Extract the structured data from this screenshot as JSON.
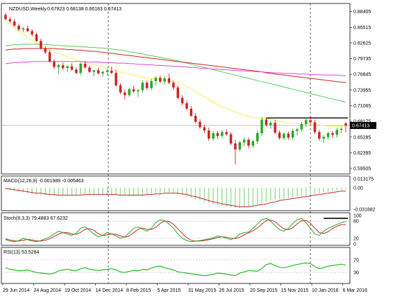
{
  "header": {
    "symbol": "NZDUSD,Weekly",
    "ohlc": "0.67823 0.68138 0.66183 0.67413"
  },
  "price_axis_labels": [
    "0.88405",
    "0.85515",
    "0.82625",
    "0.79735",
    "0.76845",
    "0.73955",
    "0.71065",
    "0.68175",
    "0.65285",
    "0.62395",
    "0.59505"
  ],
  "current_price_label": "0.67413",
  "macd": {
    "label": "MACD(12,26,9) -0.001989 -0.005463",
    "axis_labels": [
      "0.013175",
      "0.00",
      "-0.031882"
    ]
  },
  "stoch": {
    "label": "Stoch(8,3,3) 79.4883 67.6232",
    "axis_labels": [
      "100",
      "80",
      "20",
      "0"
    ]
  },
  "rsi": {
    "label": "RSI(13) 53.5284",
    "axis_labels": [
      "70",
      "30"
    ]
  },
  "time_labels": [
    "29 Jun 2014",
    "24 Aug 2014",
    "19 Oct 2014",
    "14 Dec 2014",
    "8 Feb 2015",
    "5 Apr 2015",
    "31 May 2015",
    "26 Jul 2015",
    "20 Sep 2015",
    "15 Nov 2015",
    "10 Jan 2016",
    "6 Mar 2016"
  ],
  "colors": {
    "bull": "#22aa22",
    "bear": "#cc2222",
    "sma_fast": "#ffee55",
    "sma_mid": "#55cc55",
    "sma_slow": "#cc2222",
    "sma_long": "#dd44dd",
    "macd_hist": "#99dd99",
    "signal": "#cc2222",
    "rsi": "#22bb22"
  },
  "chart_data": {
    "type": "candlestick",
    "timeframe": "Weekly",
    "ylim": [
      0.59,
      0.89
    ],
    "candles": [
      [
        0.878,
        0.882,
        0.868,
        0.87
      ],
      [
        0.87,
        0.874,
        0.862,
        0.866
      ],
      [
        0.866,
        0.87,
        0.856,
        0.858
      ],
      [
        0.858,
        0.862,
        0.848,
        0.851
      ],
      [
        0.851,
        0.856,
        0.846,
        0.853
      ],
      [
        0.853,
        0.858,
        0.846,
        0.848
      ],
      [
        0.848,
        0.852,
        0.838,
        0.842
      ],
      [
        0.842,
        0.845,
        0.828,
        0.83
      ],
      [
        0.83,
        0.834,
        0.814,
        0.816
      ],
      [
        0.816,
        0.82,
        0.806,
        0.809
      ],
      [
        0.809,
        0.813,
        0.79,
        0.792
      ],
      [
        0.792,
        0.796,
        0.778,
        0.782
      ],
      [
        0.782,
        0.788,
        0.77,
        0.785
      ],
      [
        0.785,
        0.79,
        0.776,
        0.78
      ],
      [
        0.78,
        0.786,
        0.772,
        0.783
      ],
      [
        0.783,
        0.789,
        0.775,
        0.777
      ],
      [
        0.777,
        0.781,
        0.769,
        0.771
      ],
      [
        0.771,
        0.791,
        0.767,
        0.788
      ],
      [
        0.788,
        0.793,
        0.779,
        0.781
      ],
      [
        0.781,
        0.785,
        0.771,
        0.773
      ],
      [
        0.773,
        0.777,
        0.765,
        0.776
      ],
      [
        0.776,
        0.781,
        0.768,
        0.77
      ],
      [
        0.77,
        0.775,
        0.764,
        0.773
      ],
      [
        0.773,
        0.779,
        0.767,
        0.775
      ],
      [
        0.775,
        0.783,
        0.769,
        0.771
      ],
      [
        0.771,
        0.776,
        0.745,
        0.748
      ],
      [
        0.748,
        0.752,
        0.732,
        0.735
      ],
      [
        0.735,
        0.74,
        0.722,
        0.73
      ],
      [
        0.73,
        0.744,
        0.727,
        0.741
      ],
      [
        0.741,
        0.747,
        0.734,
        0.737
      ],
      [
        0.737,
        0.741,
        0.727,
        0.739
      ],
      [
        0.739,
        0.757,
        0.735,
        0.753
      ],
      [
        0.753,
        0.757,
        0.74,
        0.743
      ],
      [
        0.743,
        0.76,
        0.739,
        0.756
      ],
      [
        0.756,
        0.765,
        0.748,
        0.762
      ],
      [
        0.762,
        0.766,
        0.752,
        0.755
      ],
      [
        0.755,
        0.765,
        0.749,
        0.761
      ],
      [
        0.761,
        0.77,
        0.75,
        0.753
      ],
      [
        0.753,
        0.757,
        0.74,
        0.744
      ],
      [
        0.744,
        0.748,
        0.722,
        0.725
      ],
      [
        0.725,
        0.73,
        0.712,
        0.715
      ],
      [
        0.715,
        0.72,
        0.702,
        0.705
      ],
      [
        0.705,
        0.71,
        0.69,
        0.692
      ],
      [
        0.692,
        0.697,
        0.678,
        0.681
      ],
      [
        0.681,
        0.686,
        0.668,
        0.671
      ],
      [
        0.671,
        0.676,
        0.66,
        0.665
      ],
      [
        0.665,
        0.67,
        0.646,
        0.65
      ],
      [
        0.65,
        0.664,
        0.646,
        0.66
      ],
      [
        0.66,
        0.664,
        0.65,
        0.655
      ],
      [
        0.655,
        0.666,
        0.651,
        0.662
      ],
      [
        0.662,
        0.667,
        0.655,
        0.658
      ],
      [
        0.658,
        0.662,
        0.638,
        0.641
      ],
      [
        0.641,
        0.648,
        0.602,
        0.63
      ],
      [
        0.63,
        0.646,
        0.626,
        0.643
      ],
      [
        0.643,
        0.652,
        0.636,
        0.648
      ],
      [
        0.648,
        0.652,
        0.632,
        0.637
      ],
      [
        0.637,
        0.648,
        0.633,
        0.645
      ],
      [
        0.645,
        0.665,
        0.64,
        0.66
      ],
      [
        0.66,
        0.69,
        0.655,
        0.685
      ],
      [
        0.685,
        0.689,
        0.672,
        0.675
      ],
      [
        0.675,
        0.683,
        0.668,
        0.679
      ],
      [
        0.679,
        0.684,
        0.658,
        0.661
      ],
      [
        0.661,
        0.665,
        0.648,
        0.651
      ],
      [
        0.651,
        0.662,
        0.647,
        0.659
      ],
      [
        0.659,
        0.663,
        0.648,
        0.652
      ],
      [
        0.652,
        0.668,
        0.648,
        0.664
      ],
      [
        0.664,
        0.67,
        0.656,
        0.667
      ],
      [
        0.667,
        0.681,
        0.662,
        0.677
      ],
      [
        0.677,
        0.688,
        0.672,
        0.684
      ],
      [
        0.684,
        0.692,
        0.676,
        0.68
      ],
      [
        0.68,
        0.685,
        0.658,
        0.662
      ],
      [
        0.662,
        0.666,
        0.646,
        0.65
      ],
      [
        0.65,
        0.656,
        0.642,
        0.653
      ],
      [
        0.653,
        0.663,
        0.648,
        0.66
      ],
      [
        0.66,
        0.664,
        0.651,
        0.657
      ],
      [
        0.657,
        0.67,
        0.652,
        0.666
      ],
      [
        0.666,
        0.671,
        0.66,
        0.668
      ],
      [
        0.678,
        0.681,
        0.662,
        0.674
      ]
    ],
    "series": [
      {
        "name": "fast",
        "values": [
          0.866,
          0.86,
          0.853,
          0.847,
          0.842,
          0.836,
          0.831,
          0.826,
          0.821,
          0.817,
          0.813,
          0.81,
          0.807,
          0.804,
          0.801,
          0.798,
          0.795,
          0.792,
          0.79,
          0.788,
          0.786,
          0.784,
          0.782,
          0.78,
          0.778,
          0.776,
          0.773,
          0.771,
          0.769,
          0.767,
          0.765,
          0.763,
          0.762,
          0.761,
          0.76,
          0.759,
          0.758,
          0.757,
          0.755,
          0.753,
          0.75,
          0.746,
          0.742,
          0.737,
          0.732,
          0.727,
          0.722,
          0.717,
          0.713,
          0.709,
          0.706,
          0.703,
          0.699,
          0.696,
          0.693,
          0.691,
          0.689,
          0.688,
          0.688,
          0.687,
          0.686,
          0.684,
          0.682,
          0.68,
          0.679,
          0.678,
          0.678,
          0.677,
          0.677,
          0.677,
          0.676,
          0.675,
          0.674,
          0.673,
          0.672,
          0.672,
          0.672,
          0.672
        ]
      },
      {
        "name": "mid",
        "values": [
          0.821,
          0.822,
          0.823,
          0.823,
          0.824,
          0.824,
          0.824,
          0.824,
          0.824,
          0.823,
          0.823,
          0.822,
          0.822,
          0.821,
          0.821,
          0.82,
          0.82,
          0.819,
          0.819,
          0.818,
          0.818,
          0.817,
          0.817,
          0.816,
          0.815,
          0.814,
          0.813,
          0.812,
          0.81,
          0.809,
          0.807,
          0.806,
          0.804,
          0.803,
          0.801,
          0.8,
          0.798,
          0.797,
          0.795,
          0.793,
          0.791,
          0.789,
          0.787,
          0.785,
          0.783,
          0.781,
          0.779,
          0.777,
          0.775,
          0.773,
          0.771,
          0.769,
          0.767,
          0.765,
          0.763,
          0.761,
          0.759,
          0.757,
          0.755,
          0.753,
          0.751,
          0.749,
          0.747,
          0.745,
          0.743,
          0.741,
          0.739,
          0.737,
          0.735,
          0.733,
          0.731,
          0.729,
          0.727,
          0.725,
          0.723,
          0.721,
          0.719,
          0.717
        ]
      },
      {
        "name": "slow",
        "values": [
          0.813,
          0.814,
          0.815,
          0.815,
          0.816,
          0.816,
          0.816,
          0.816,
          0.816,
          0.816,
          0.816,
          0.816,
          0.815,
          0.815,
          0.814,
          0.814,
          0.813,
          0.813,
          0.812,
          0.811,
          0.811,
          0.81,
          0.809,
          0.808,
          0.807,
          0.806,
          0.805,
          0.804,
          0.803,
          0.802,
          0.801,
          0.8,
          0.799,
          0.798,
          0.797,
          0.796,
          0.795,
          0.794,
          0.793,
          0.792,
          0.791,
          0.79,
          0.789,
          0.788,
          0.787,
          0.786,
          0.785,
          0.784,
          0.783,
          0.782,
          0.781,
          0.78,
          0.779,
          0.778,
          0.777,
          0.776,
          0.775,
          0.774,
          0.773,
          0.771,
          0.77,
          0.769,
          0.768,
          0.767,
          0.766,
          0.765,
          0.764,
          0.763,
          0.762,
          0.761,
          0.76,
          0.759,
          0.758,
          0.757,
          0.756,
          0.755,
          0.754,
          0.753
        ]
      },
      {
        "name": "long",
        "values": [
          0.788,
          0.789,
          0.79,
          0.79,
          0.791,
          0.791,
          0.792,
          0.792,
          0.792,
          0.792,
          0.792,
          0.792,
          0.792,
          0.792,
          0.792,
          0.792,
          0.792,
          0.792,
          0.791,
          0.791,
          0.791,
          0.791,
          0.79,
          0.79,
          0.79,
          0.789,
          0.789,
          0.789,
          0.788,
          0.788,
          0.787,
          0.787,
          0.786,
          0.786,
          0.785,
          0.785,
          0.784,
          0.784,
          0.783,
          0.783,
          0.782,
          0.782,
          0.781,
          0.781,
          0.78,
          0.779,
          0.779,
          0.778,
          0.778,
          0.777,
          0.777,
          0.776,
          0.776,
          0.775,
          0.775,
          0.774,
          0.774,
          0.773,
          0.773,
          0.772,
          0.772,
          0.771,
          0.771,
          0.77,
          0.77,
          0.77,
          0.769,
          0.769,
          0.769,
          0.768,
          0.768,
          0.768,
          0.767,
          0.767,
          0.767,
          0.767,
          0.766,
          0.766
        ]
      }
    ],
    "resistance_level": 0.688,
    "current_price": 0.67413,
    "macd": {
      "ylim": [
        -0.0319,
        0.0132
      ],
      "hist": [
        -0.003,
        -0.004,
        -0.005,
        -0.006,
        -0.007,
        -0.008,
        -0.009,
        -0.01,
        -0.01,
        -0.011,
        -0.011,
        -0.012,
        -0.012,
        -0.012,
        -0.011,
        -0.011,
        -0.011,
        -0.01,
        -0.01,
        -0.01,
        -0.01,
        -0.01,
        -0.01,
        -0.01,
        -0.011,
        -0.011,
        -0.012,
        -0.012,
        -0.012,
        -0.012,
        -0.011,
        -0.011,
        -0.01,
        -0.009,
        -0.008,
        -0.008,
        -0.007,
        -0.007,
        -0.008,
        -0.009,
        -0.011,
        -0.013,
        -0.015,
        -0.017,
        -0.019,
        -0.021,
        -0.023,
        -0.025,
        -0.026,
        -0.027,
        -0.028,
        -0.029,
        -0.03,
        -0.03,
        -0.029,
        -0.028,
        -0.027,
        -0.025,
        -0.023,
        -0.021,
        -0.019,
        -0.018,
        -0.017,
        -0.016,
        -0.015,
        -0.014,
        -0.013,
        -0.012,
        -0.011,
        -0.01,
        -0.009,
        -0.008,
        -0.007,
        -0.006,
        -0.005,
        -0.004,
        -0.003,
        -0.002
      ],
      "signal": [
        -0.001,
        -0.002,
        -0.003,
        -0.004,
        -0.005,
        -0.006,
        -0.007,
        -0.008,
        -0.008,
        -0.009,
        -0.01,
        -0.01,
        -0.011,
        -0.011,
        -0.011,
        -0.011,
        -0.011,
        -0.011,
        -0.01,
        -0.01,
        -0.01,
        -0.01,
        -0.01,
        -0.01,
        -0.01,
        -0.01,
        -0.011,
        -0.011,
        -0.011,
        -0.011,
        -0.011,
        -0.011,
        -0.01,
        -0.01,
        -0.009,
        -0.009,
        -0.008,
        -0.008,
        -0.008,
        -0.008,
        -0.009,
        -0.01,
        -0.012,
        -0.013,
        -0.015,
        -0.017,
        -0.019,
        -0.021,
        -0.022,
        -0.024,
        -0.025,
        -0.026,
        -0.027,
        -0.028,
        -0.028,
        -0.028,
        -0.027,
        -0.026,
        -0.025,
        -0.024,
        -0.022,
        -0.021,
        -0.019,
        -0.018,
        -0.017,
        -0.016,
        -0.015,
        -0.014,
        -0.013,
        -0.012,
        -0.011,
        -0.01,
        -0.009,
        -0.008,
        -0.007,
        -0.006,
        -0.005,
        -0.005
      ]
    },
    "stoch": {
      "ylim": [
        0,
        100
      ],
      "k": [
        15,
        10,
        8,
        12,
        20,
        15,
        10,
        8,
        12,
        18,
        25,
        35,
        45,
        40,
        35,
        30,
        38,
        55,
        60,
        48,
        35,
        25,
        30,
        40,
        35,
        28,
        20,
        25,
        40,
        55,
        60,
        52,
        45,
        55,
        75,
        85,
        82,
        70,
        55,
        35,
        20,
        12,
        8,
        10,
        12,
        15,
        18,
        22,
        28,
        25,
        20,
        15,
        22,
        35,
        40,
        42,
        55,
        70,
        85,
        90,
        80,
        65,
        50,
        45,
        55,
        72,
        85,
        90,
        75,
        55,
        35,
        30,
        45,
        55,
        62,
        68,
        75,
        79
      ],
      "d": [
        18,
        14,
        11,
        10,
        13,
        16,
        14,
        11,
        10,
        13,
        18,
        26,
        35,
        40,
        40,
        35,
        34,
        41,
        51,
        54,
        48,
        36,
        30,
        32,
        35,
        34,
        28,
        24,
        28,
        40,
        52,
        56,
        52,
        51,
        58,
        72,
        81,
        79,
        69,
        53,
        37,
        22,
        13,
        10,
        10,
        12,
        15,
        18,
        23,
        25,
        24,
        20,
        19,
        24,
        32,
        39,
        46,
        56,
        70,
        82,
        85,
        78,
        65,
        53,
        50,
        57,
        71,
        82,
        83,
        73,
        55,
        40,
        37,
        43,
        54,
        62,
        68,
        68
      ]
    },
    "rsi": {
      "ylim": [
        0,
        100
      ],
      "values": [
        45,
        40,
        38,
        35,
        36,
        38,
        34,
        30,
        28,
        27,
        25,
        28,
        35,
        38,
        40,
        37,
        35,
        42,
        45,
        40,
        38,
        36,
        38,
        40,
        42,
        38,
        32,
        30,
        34,
        36,
        35,
        40,
        38,
        44,
        48,
        50,
        45,
        42,
        38,
        32,
        30,
        28,
        26,
        24,
        22,
        20,
        22,
        24,
        28,
        27,
        25,
        22,
        20,
        28,
        32,
        36,
        35,
        34,
        42,
        55,
        58,
        52,
        46,
        45,
        48,
        52,
        55,
        58,
        60,
        58,
        48,
        42,
        45,
        50,
        52,
        54,
        56,
        53
      ]
    }
  }
}
